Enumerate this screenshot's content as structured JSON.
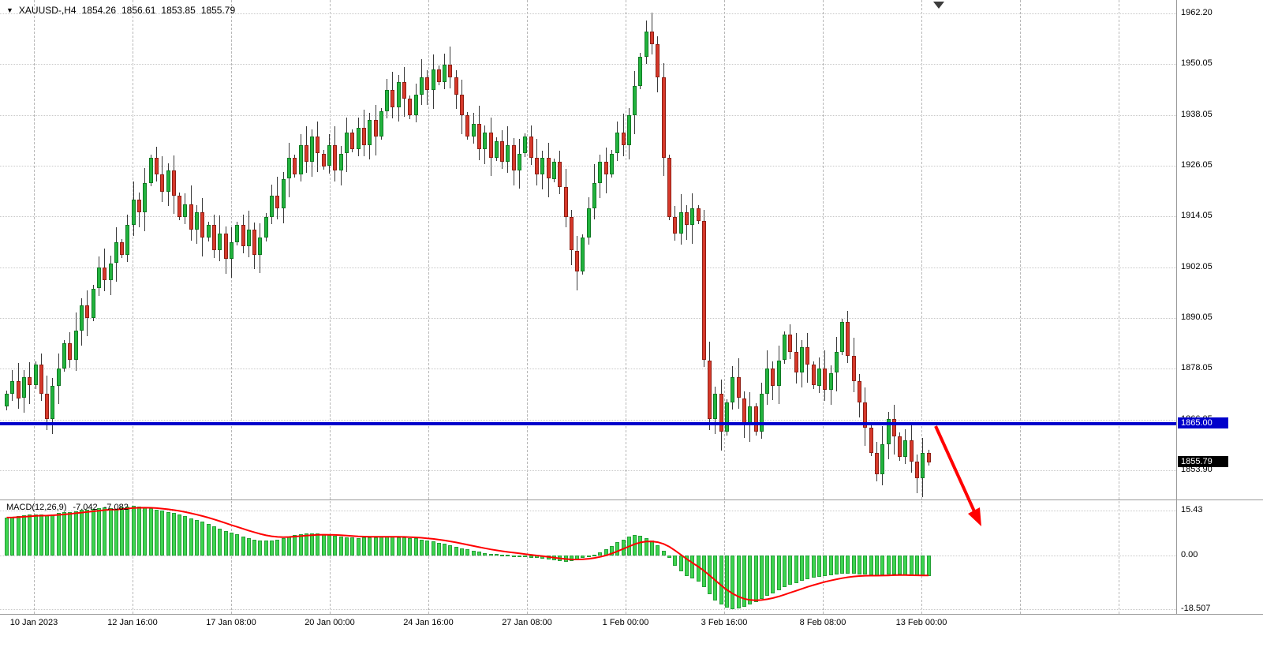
{
  "header": {
    "dropdown_icon": "▼",
    "symbol_period": "XAUUSD-,H4",
    "open": "1854.26",
    "high": "1856.61",
    "low": "1853.85",
    "close": "1855.79"
  },
  "indicator": {
    "label": "MACD(12,26,9)",
    "macd_value": "-7.042",
    "signal_value": "-7.082"
  },
  "badges": {
    "line_price": "1865.00",
    "current_price": "1855.79"
  },
  "colors": {
    "bull_body": "#22b33e",
    "bull_border": "#0e7a22",
    "bear_body": "#d6392b",
    "bear_border": "#8f1f14",
    "wick": "#3a3a3a",
    "macd_hist": "#3dd44f",
    "macd_hist_border": "#23a035",
    "macd_signal": "#ff0000",
    "hline": "#0000cb",
    "hline_badge_bg": "#0000cb",
    "current_badge_bg": "#000000",
    "arrow": "#ff0000"
  },
  "chart_data": {
    "type": "candlestick",
    "symbol": "XAUUSD",
    "timeframe": "H4",
    "y_axis_labels": [
      "1962.20",
      "1950.05",
      "1938.05",
      "1926.05",
      "1914.05",
      "1902.05",
      "1890.05",
      "1878.05",
      "1866.05",
      "1853.90"
    ],
    "x_axis_labels": [
      "10 Jan 2023",
      "12 Jan 16:00",
      "17 Jan 08:00",
      "20 Jan 00:00",
      "24 Jan 16:00",
      "27 Jan 08:00",
      "1 Feb 00:00",
      "3 Feb 16:00",
      "8 Feb 08:00",
      "13 Feb 00:00"
    ],
    "price_range": [
      1853.9,
      1962.2
    ],
    "horizontal_line_price": 1865.0,
    "last_price": 1855.79,
    "first_open": 1869,
    "closes": [
      1872,
      1875,
      1871,
      1876,
      1874,
      1879,
      1872,
      1866,
      1874,
      1878,
      1884,
      1880,
      1887,
      1893,
      1890,
      1897,
      1902,
      1899,
      1903,
      1908,
      1905,
      1912,
      1918,
      1915,
      1922,
      1928,
      1924,
      1920,
      1925,
      1919,
      1914,
      1917,
      1911,
      1915,
      1909,
      1912,
      1906,
      1910,
      1904,
      1908,
      1912,
      1907,
      1911,
      1905,
      1909,
      1914,
      1919,
      1916,
      1923,
      1928,
      1924,
      1931,
      1927,
      1933,
      1929,
      1926,
      1931,
      1925,
      1929,
      1934,
      1930,
      1935,
      1931,
      1937,
      1933,
      1939,
      1944,
      1940,
      1946,
      1942,
      1938,
      1943,
      1947,
      1944,
      1949,
      1946,
      1950,
      1947,
      1943,
      1938,
      1933,
      1936,
      1930,
      1934,
      1928,
      1932,
      1927,
      1931,
      1925,
      1929,
      1933,
      1928,
      1924,
      1928,
      1923,
      1927,
      1921,
      1914,
      1906,
      1901,
      1909,
      1916,
      1922,
      1927,
      1924,
      1929,
      1934,
      1931,
      1938,
      1945,
      1952,
      1958,
      1955,
      1947,
      1928,
      1914,
      1910,
      1915,
      1912,
      1916,
      1913,
      1880,
      1866,
      1872,
      1863,
      1870,
      1876,
      1871,
      1865,
      1869,
      1863,
      1872,
      1878,
      1874,
      1880,
      1886,
      1882,
      1877,
      1883,
      1879,
      1874,
      1878,
      1873,
      1877,
      1882,
      1889,
      1881,
      1875,
      1870,
      1864,
      1858,
      1853,
      1860,
      1866,
      1862,
      1857,
      1861,
      1856,
      1852,
      1858,
      1855.79
    ],
    "macd": {
      "type": "bar+line",
      "axis_labels": [
        "15.43",
        "0.00",
        "-18.507"
      ],
      "range": [
        -18.507,
        15.43
      ],
      "histogram": [
        13.0,
        13.2,
        13.5,
        13.8,
        14.0,
        14.2,
        14.0,
        13.8,
        14.2,
        14.5,
        14.8,
        15.0,
        15.3,
        15.6,
        15.8,
        16.0,
        16.2,
        16.5,
        16.3,
        16.0,
        16.5,
        16.8,
        17.0,
        16.8,
        16.5,
        16.2,
        15.8,
        15.4,
        15.0,
        14.5,
        14.0,
        13.4,
        12.8,
        12.2,
        11.5,
        10.8,
        10.0,
        9.2,
        8.5,
        7.8,
        7.2,
        6.6,
        6.0,
        5.5,
        5.2,
        5.0,
        5.2,
        5.5,
        6.0,
        6.5,
        7.0,
        7.3,
        7.5,
        7.6,
        7.5,
        7.3,
        7.0,
        6.8,
        6.5,
        6.3,
        6.2,
        6.0,
        6.1,
        6.2,
        6.3,
        6.4,
        6.5,
        6.4,
        6.3,
        6.2,
        6.0,
        5.8,
        5.5,
        5.2,
        4.8,
        4.4,
        4.0,
        3.5,
        3.0,
        2.5,
        2.0,
        1.6,
        1.2,
        0.9,
        0.6,
        0.4,
        0.2,
        0.1,
        -0.1,
        -0.3,
        -0.5,
        -0.8,
        -1.0,
        -1.2,
        -1.5,
        -1.8,
        -2.0,
        -2.2,
        -2.0,
        -1.5,
        -1.0,
        -0.5,
        0.2,
        1.0,
        2.0,
        3.2,
        4.5,
        5.5,
        6.5,
        7.0,
        6.8,
        6.0,
        5.0,
        3.5,
        1.5,
        -1.0,
        -3.5,
        -5.5,
        -7.0,
        -8.0,
        -9.0,
        -11.0,
        -13.5,
        -15.5,
        -17.0,
        -18.0,
        -18.5,
        -18.3,
        -17.8,
        -17.0,
        -16.0,
        -15.0,
        -14.0,
        -13.0,
        -12.0,
        -11.0,
        -10.2,
        -9.5,
        -8.8,
        -8.2,
        -7.8,
        -7.4,
        -7.0,
        -6.8,
        -6.5,
        -6.3,
        -6.2,
        -6.3,
        -6.5,
        -6.6,
        -6.8,
        -7.0,
        -6.9,
        -6.7,
        -6.5,
        -6.6,
        -6.8,
        -7.0,
        -7.1,
        -7.0,
        -7.042
      ]
    }
  }
}
